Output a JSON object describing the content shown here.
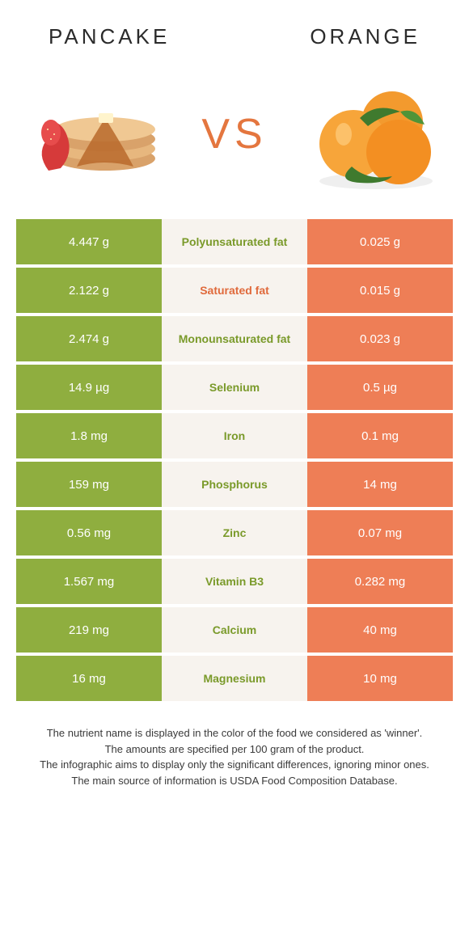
{
  "colors": {
    "left_bg": "#8fae3f",
    "right_bg": "#ee7e56",
    "mid_bg": "#f7f3ee",
    "left_text": "#ffffff",
    "right_text": "#ffffff",
    "nutrient_left_color": "#7a9a2a",
    "nutrient_right_color": "#e06a3c",
    "vs_color": "#e4763f",
    "title_color": "#2b2b2b",
    "caption_color": "#3a3a3a"
  },
  "header": {
    "left_title": "PANCAKE",
    "right_title": "ORANGE",
    "vs": "VS"
  },
  "rows": [
    {
      "left": "4.447 g",
      "nutrient": "Polyunsaturated fat",
      "right": "0.025 g",
      "winner": "left"
    },
    {
      "left": "2.122 g",
      "nutrient": "Saturated fat",
      "right": "0.015 g",
      "winner": "right"
    },
    {
      "left": "2.474 g",
      "nutrient": "Monounsaturated fat",
      "right": "0.023 g",
      "winner": "left"
    },
    {
      "left": "14.9 µg",
      "nutrient": "Selenium",
      "right": "0.5 µg",
      "winner": "left"
    },
    {
      "left": "1.8 mg",
      "nutrient": "Iron",
      "right": "0.1 mg",
      "winner": "left"
    },
    {
      "left": "159 mg",
      "nutrient": "Phosphorus",
      "right": "14 mg",
      "winner": "left"
    },
    {
      "left": "0.56 mg",
      "nutrient": "Zinc",
      "right": "0.07 mg",
      "winner": "left"
    },
    {
      "left": "1.567 mg",
      "nutrient": "Vitamin B3",
      "right": "0.282 mg",
      "winner": "left"
    },
    {
      "left": "219 mg",
      "nutrient": "Calcium",
      "right": "40 mg",
      "winner": "left"
    },
    {
      "left": "16 mg",
      "nutrient": "Magnesium",
      "right": "10 mg",
      "winner": "left"
    }
  ],
  "caption": {
    "line1": "The nutrient name is displayed in the color of the food we considered as 'winner'.",
    "line2": "The amounts are specified per 100 gram of the product.",
    "line3": "The infographic aims to display only the significant differences, ignoring minor ones.",
    "line4": "The main source of information is USDA Food Composition Database."
  },
  "fonts": {
    "title_size": 26,
    "title_spacing": 4,
    "vs_size": 52,
    "cell_size": 15,
    "nutrient_size": 14,
    "caption_size": 13
  }
}
